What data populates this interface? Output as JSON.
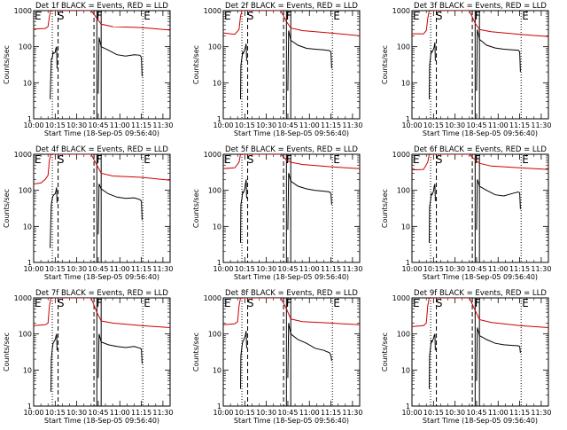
{
  "chart_data": {
    "type": "line",
    "layout": "3x3 grid",
    "y_scale": "log",
    "ylim": [
      1,
      1000
    ],
    "y_ticks": [
      "1",
      "10",
      "100",
      "1000"
    ],
    "ylabel": "Counts/sec",
    "xlabel": "Start Time (18-Sep-05 09:56:40)",
    "x_range": [
      "10:00",
      "11:35"
    ],
    "x_ticks": [
      "10:00",
      "10:15",
      "10:30",
      "10:45",
      "11:00",
      "11:15",
      "11:30"
    ],
    "marker_lines": [
      {
        "time": "10:13",
        "style": "dotted"
      },
      {
        "time": "10:17",
        "style": "dashed"
      },
      {
        "time": "10:42",
        "style": "dashed"
      },
      {
        "time": "10:44",
        "style": "solid"
      },
      {
        "time": "10:47",
        "style": "solid"
      },
      {
        "time": "11:16",
        "style": "dotted"
      }
    ],
    "flags": [
      {
        "label": "E",
        "time": "10:00"
      },
      {
        "label": "S",
        "time": "10:16"
      },
      {
        "label": "F",
        "time": "10:43"
      },
      {
        "label": "E",
        "time": "11:16"
      }
    ],
    "series_colors": {
      "events": "#000000",
      "lld": "#cc0000"
    },
    "panels": [
      {
        "title": "Det 1f BLACK = Events, RED = LLD",
        "lld": [
          [
            0,
            310
          ],
          [
            8,
            320
          ],
          [
            10,
            360
          ],
          [
            11,
            700
          ],
          [
            12,
            1000
          ],
          [
            40,
            1000
          ],
          [
            44,
            620
          ],
          [
            47,
            420
          ],
          [
            55,
            360
          ],
          [
            75,
            340
          ],
          [
            95,
            290
          ]
        ],
        "events": [
          [
            11.5,
            3.5
          ],
          [
            12,
            20
          ],
          [
            12.3,
            45
          ],
          [
            13,
            50
          ],
          [
            13.5,
            70
          ],
          [
            14,
            65
          ],
          [
            15,
            70
          ],
          [
            15.5,
            90
          ],
          [
            16,
            100
          ],
          [
            16.3,
            25
          ],
          null,
          [
            45,
            5
          ],
          [
            45.5,
            180
          ],
          [
            47,
            100
          ],
          [
            52,
            80
          ],
          [
            58,
            60
          ],
          [
            64,
            55
          ],
          [
            70,
            60
          ],
          [
            74,
            58
          ],
          [
            75,
            50
          ],
          [
            75.5,
            15
          ]
        ]
      },
      {
        "title": "Det 2f BLACK = Events, RED = LLD",
        "lld": [
          [
            0,
            240
          ],
          [
            8,
            220
          ],
          [
            11,
            300
          ],
          [
            12,
            700
          ],
          [
            13,
            1000
          ],
          [
            40,
            1000
          ],
          [
            44,
            500
          ],
          [
            47,
            330
          ],
          [
            55,
            280
          ],
          [
            75,
            240
          ],
          [
            95,
            200
          ]
        ],
        "events": [
          [
            12,
            3.5
          ],
          [
            12.3,
            30
          ],
          [
            13,
            50
          ],
          [
            13.5,
            70
          ],
          [
            14,
            65
          ],
          [
            15,
            85
          ],
          [
            15.5,
            100
          ],
          [
            16,
            120
          ],
          [
            16.3,
            40
          ],
          null,
          [
            45,
            6
          ],
          [
            45.5,
            280
          ],
          [
            47,
            150
          ],
          [
            52,
            110
          ],
          [
            58,
            90
          ],
          [
            64,
            85
          ],
          [
            70,
            82
          ],
          [
            74,
            78
          ],
          [
            75,
            70
          ],
          [
            75.5,
            25
          ]
        ]
      },
      {
        "title": "Det 3f BLACK = Events, RED = LLD",
        "lld": [
          [
            0,
            230
          ],
          [
            8,
            225
          ],
          [
            10,
            280
          ],
          [
            11,
            600
          ],
          [
            12,
            1000
          ],
          [
            40,
            1000
          ],
          [
            44,
            450
          ],
          [
            47,
            300
          ],
          [
            55,
            260
          ],
          [
            75,
            220
          ],
          [
            95,
            190
          ]
        ],
        "events": [
          [
            12,
            3.5
          ],
          [
            12.3,
            30
          ],
          [
            13,
            55
          ],
          [
            13.5,
            75
          ],
          [
            14,
            70
          ],
          [
            15,
            85
          ],
          [
            15.5,
            100
          ],
          [
            16,
            130
          ],
          [
            16.3,
            40
          ],
          null,
          [
            45,
            6
          ],
          [
            45.5,
            300
          ],
          [
            47,
            160
          ],
          [
            52,
            110
          ],
          [
            58,
            92
          ],
          [
            64,
            85
          ],
          [
            70,
            82
          ],
          [
            74,
            80
          ],
          [
            75,
            72
          ],
          [
            75.5,
            20
          ]
        ]
      },
      {
        "title": "Det 4f BLACK = Events, RED = LLD",
        "lld": [
          [
            0,
            150
          ],
          [
            5,
            160
          ],
          [
            8,
            200
          ],
          [
            10,
            260
          ],
          [
            11,
            700
          ],
          [
            12,
            1000
          ],
          [
            40,
            1000
          ],
          [
            44,
            500
          ],
          [
            47,
            300
          ],
          [
            55,
            250
          ],
          [
            75,
            230
          ],
          [
            95,
            190
          ]
        ],
        "events": [
          [
            11.5,
            2.5
          ],
          [
            12,
            20
          ],
          [
            12.3,
            40
          ],
          [
            13,
            60
          ],
          [
            13.5,
            70
          ],
          [
            14,
            75
          ],
          [
            15,
            80
          ],
          [
            15.5,
            95
          ],
          [
            16,
            120
          ],
          [
            16.3,
            45
          ],
          null,
          [
            45,
            6
          ],
          [
            45.5,
            150
          ],
          [
            47,
            110
          ],
          [
            52,
            80
          ],
          [
            58,
            65
          ],
          [
            64,
            60
          ],
          [
            70,
            62
          ],
          [
            74,
            55
          ],
          [
            75,
            50
          ],
          [
            75.5,
            15
          ]
        ]
      },
      {
        "title": "Det 5f BLACK = Events, RED = LLD",
        "lld": [
          [
            0,
            400
          ],
          [
            8,
            420
          ],
          [
            11,
            600
          ],
          [
            12,
            1000
          ],
          [
            40,
            1000
          ],
          [
            44,
            700
          ],
          [
            47,
            600
          ],
          [
            55,
            520
          ],
          [
            75,
            450
          ],
          [
            95,
            400
          ]
        ],
        "events": [
          [
            12,
            3.5
          ],
          [
            12.3,
            40
          ],
          [
            13,
            60
          ],
          [
            13.5,
            90
          ],
          [
            14,
            85
          ],
          [
            15,
            110
          ],
          [
            15.5,
            150
          ],
          [
            16,
            200
          ],
          [
            16.3,
            60
          ],
          null,
          [
            45,
            8
          ],
          [
            45.5,
            300
          ],
          [
            47,
            180
          ],
          [
            52,
            130
          ],
          [
            58,
            110
          ],
          [
            64,
            100
          ],
          [
            70,
            95
          ],
          [
            74,
            90
          ],
          [
            75,
            80
          ],
          [
            75.5,
            40
          ]
        ]
      },
      {
        "title": "Det 6f BLACK = Events, RED = LLD",
        "lld": [
          [
            0,
            370
          ],
          [
            8,
            380
          ],
          [
            11,
            600
          ],
          [
            12,
            1000
          ],
          [
            40,
            1000
          ],
          [
            44,
            700
          ],
          [
            47,
            560
          ],
          [
            55,
            470
          ],
          [
            75,
            420
          ],
          [
            95,
            380
          ]
        ],
        "events": [
          [
            12,
            3.5
          ],
          [
            12.3,
            35
          ],
          [
            13,
            55
          ],
          [
            13.5,
            80
          ],
          [
            14,
            75
          ],
          [
            15,
            95
          ],
          [
            15.5,
            130
          ],
          [
            16,
            150
          ],
          [
            16.3,
            50
          ],
          null,
          [
            45,
            8
          ],
          [
            45.5,
            200
          ],
          [
            47,
            130
          ],
          [
            52,
            100
          ],
          [
            58,
            75
          ],
          [
            64,
            70
          ],
          [
            70,
            82
          ],
          [
            74,
            90
          ],
          [
            75,
            85
          ],
          [
            75.5,
            30
          ]
        ]
      },
      {
        "title": "Det 7f BLACK = Events, RED = LLD",
        "lld": [
          [
            0,
            170
          ],
          [
            8,
            180
          ],
          [
            10,
            200
          ],
          [
            11,
            600
          ],
          [
            12,
            1000
          ],
          [
            40,
            1000
          ],
          [
            44,
            400
          ],
          [
            47,
            230
          ],
          [
            55,
            200
          ],
          [
            75,
            170
          ],
          [
            95,
            150
          ]
        ],
        "events": [
          [
            12,
            2.5
          ],
          [
            12.3,
            20
          ],
          [
            13,
            40
          ],
          [
            13.5,
            55
          ],
          [
            14,
            60
          ],
          [
            15,
            70
          ],
          [
            15.5,
            85
          ],
          [
            16,
            100
          ],
          [
            16.3,
            35
          ],
          null,
          [
            45,
            6
          ],
          [
            45.5,
            100
          ],
          [
            47,
            60
          ],
          [
            52,
            50
          ],
          [
            58,
            45
          ],
          [
            64,
            42
          ],
          [
            70,
            45
          ],
          [
            74,
            40
          ],
          [
            75,
            38
          ],
          [
            75.5,
            15
          ]
        ]
      },
      {
        "title": "Det 8f BLACK = Events, RED = LLD",
        "lld": [
          [
            0,
            180
          ],
          [
            8,
            190
          ],
          [
            10,
            220
          ],
          [
            11,
            600
          ],
          [
            12,
            1000
          ],
          [
            40,
            1000
          ],
          [
            44,
            500
          ],
          [
            47,
            260
          ],
          [
            55,
            220
          ],
          [
            75,
            200
          ],
          [
            95,
            180
          ]
        ],
        "events": [
          [
            12,
            3
          ],
          [
            12.3,
            25
          ],
          [
            13,
            45
          ],
          [
            13.5,
            60
          ],
          [
            14,
            65
          ],
          [
            15,
            80
          ],
          [
            15.5,
            95
          ],
          [
            16,
            120
          ],
          [
            16.3,
            40
          ],
          null,
          [
            45,
            6
          ],
          [
            45.5,
            200
          ],
          [
            47,
            100
          ],
          [
            52,
            70
          ],
          [
            58,
            55
          ],
          [
            64,
            40
          ],
          [
            70,
            35
          ],
          [
            74,
            30
          ],
          [
            75,
            25
          ],
          [
            75.5,
            18
          ]
        ]
      },
      {
        "title": "Det 9f BLACK = Events, RED = LLD",
        "lld": [
          [
            0,
            160
          ],
          [
            8,
            170
          ],
          [
            10,
            200
          ],
          [
            11,
            600
          ],
          [
            12,
            1000
          ],
          [
            40,
            1000
          ],
          [
            44,
            450
          ],
          [
            47,
            250
          ],
          [
            55,
            210
          ],
          [
            75,
            170
          ],
          [
            95,
            150
          ]
        ],
        "events": [
          [
            12,
            3
          ],
          [
            12.3,
            25
          ],
          [
            13,
            45
          ],
          [
            13.5,
            65
          ],
          [
            14,
            60
          ],
          [
            15,
            75
          ],
          [
            15.5,
            90
          ],
          [
            16,
            100
          ],
          [
            16.3,
            35
          ],
          null,
          [
            45,
            5
          ],
          [
            45.5,
            150
          ],
          [
            47,
            90
          ],
          [
            52,
            70
          ],
          [
            58,
            55
          ],
          [
            64,
            50
          ],
          [
            70,
            48
          ],
          [
            74,
            47
          ],
          [
            75,
            45
          ],
          [
            75.5,
            30
          ]
        ]
      }
    ]
  }
}
